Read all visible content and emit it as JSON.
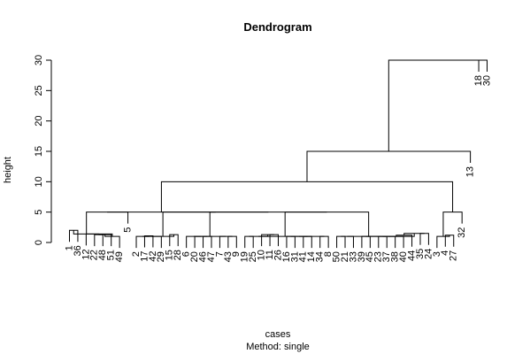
{
  "chart_data": {
    "type": "dendrogram",
    "title": "Dendrogram",
    "xlabel": "cases",
    "sublabel": "Method:  single",
    "ylabel": "height",
    "ylim": [
      0,
      30
    ],
    "yticks": [
      0,
      5,
      10,
      15,
      20,
      25,
      30
    ],
    "leaves": [
      "1",
      "36",
      "12",
      "22",
      "48",
      "51",
      "49",
      "5",
      "2",
      "17",
      "42",
      "29",
      "15",
      "28",
      "6",
      "20",
      "46",
      "47",
      "7",
      "43",
      "9",
      "19",
      "25",
      "10",
      "11",
      "26",
      "16",
      "31",
      "41",
      "14",
      "34",
      "8",
      "50",
      "21",
      "33",
      "39",
      "45",
      "23",
      "37",
      "38",
      "40",
      "44",
      "35",
      "24",
      "3",
      "4",
      "27",
      "32",
      "13",
      "18",
      "30"
    ],
    "merges": [
      [
        "1",
        "36",
        2.0
      ],
      [
        "22",
        "48",
        1.3
      ],
      [
        "m2",
        "51",
        1.3
      ],
      [
        "m3",
        "49",
        1.0
      ],
      [
        "12",
        "m4",
        1.4
      ],
      [
        "m1",
        "m5",
        1.4
      ],
      [
        "m6",
        "5",
        5.0
      ],
      [
        "17",
        "42",
        1.1
      ],
      [
        "2",
        "m8",
        1.0
      ],
      [
        "m9",
        "29",
        1.0
      ],
      [
        "15",
        "28",
        1.3
      ],
      [
        "m10",
        "m11",
        1.0
      ],
      [
        "46",
        "47",
        1.0
      ],
      [
        "20",
        "m13",
        1.0
      ],
      [
        "6",
        "m14",
        1.0
      ],
      [
        "43",
        "9",
        1.0
      ],
      [
        "7",
        "m16",
        1.0
      ],
      [
        "m15",
        "m17",
        1.0
      ],
      [
        "19",
        "25",
        1.0
      ],
      [
        "11",
        "26",
        1.3
      ],
      [
        "10",
        "m20",
        1.3
      ],
      [
        "m19",
        "m21",
        1.0
      ],
      [
        "16",
        "31",
        1.0
      ],
      [
        "41",
        "14",
        1.0
      ],
      [
        "m23",
        "m24",
        1.0
      ],
      [
        "34",
        "8",
        1.0
      ],
      [
        "m25",
        "m26",
        1.0
      ],
      [
        "m22",
        "m27",
        1.0
      ],
      [
        "50",
        "21",
        1.0
      ],
      [
        "33",
        "m29",
        1.0
      ],
      [
        "39",
        "45",
        1.0
      ],
      [
        "23",
        "37",
        1.0
      ],
      [
        "m32",
        "38",
        1.0
      ],
      [
        "m33",
        "40",
        1.0
      ],
      [
        "m34",
        "44",
        1.2
      ],
      [
        "35",
        "24",
        1.5
      ],
      [
        "m35",
        "m36",
        1.5
      ],
      [
        "m31",
        "m37",
        1.0
      ],
      [
        "m30",
        "m38",
        1.0
      ],
      [
        "m28",
        "m39",
        5.0
      ],
      [
        "m18",
        "m40",
        5.0
      ],
      [
        "m12",
        "m41",
        5.0
      ],
      [
        "m7",
        "m42",
        5.0
      ],
      [
        "4",
        "27",
        1.2
      ],
      [
        "3",
        "m44",
        1.0
      ],
      [
        "m45",
        "32",
        5.0
      ],
      [
        "m43",
        "m46",
        10.0
      ],
      [
        "m47",
        "13",
        15.0
      ],
      [
        "18",
        "30",
        30.0
      ],
      [
        "m48",
        "m49",
        30.0
      ]
    ]
  }
}
